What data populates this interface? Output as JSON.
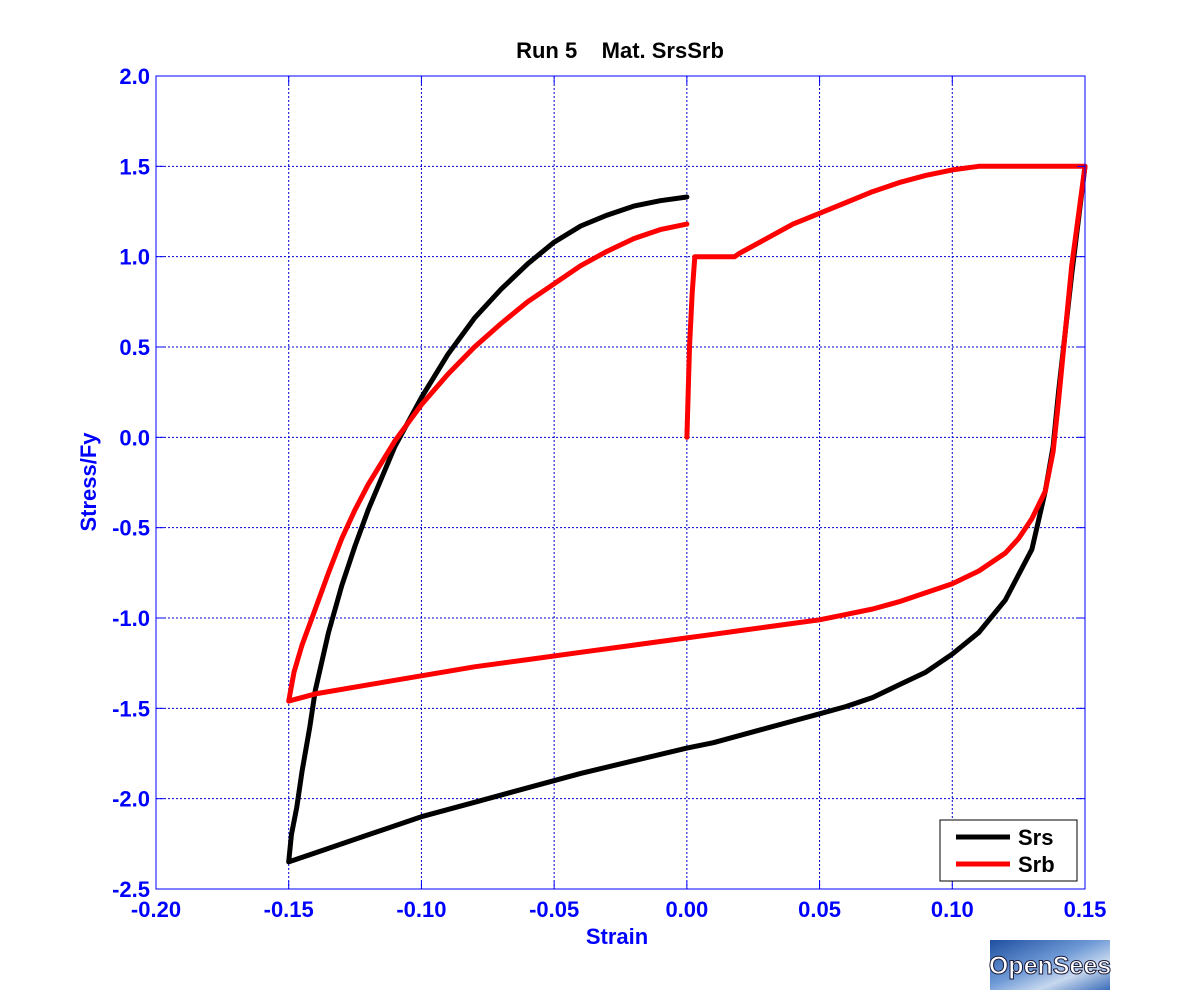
{
  "chart_data": {
    "type": "line",
    "title": "Run 5    Mat. SrsSrb",
    "xlabel": "Strain",
    "ylabel": "Stress/Fy",
    "xlim": [
      -0.2,
      0.15
    ],
    "ylim": [
      -2.5,
      2.0
    ],
    "xticks": [
      -0.2,
      -0.15,
      -0.1,
      -0.05,
      0.0,
      0.05,
      0.1,
      0.15
    ],
    "xtick_labels": [
      "-0.20",
      "-0.15",
      "-0.10",
      "-0.05",
      "0.00",
      "0.05",
      "0.10",
      "0.15"
    ],
    "yticks": [
      2.0,
      1.5,
      1.0,
      0.5,
      0.0,
      -0.5,
      -1.0,
      -1.5,
      -2.0,
      -2.5
    ],
    "ytick_labels": [
      "2.0",
      "1.5",
      "1.0",
      "0.5",
      "0.0",
      "-0.5",
      "-1.0",
      "-1.5",
      "-2.0",
      "-2.5"
    ],
    "grid": true,
    "legend": "bottom-right",
    "series": [
      {
        "name": "Srs",
        "color": "#000000",
        "x": [
          0.15,
          0.145,
          0.14,
          0.138,
          0.135,
          0.13,
          0.12,
          0.11,
          0.1,
          0.09,
          0.08,
          0.07,
          0.06,
          0.05,
          0.04,
          0.03,
          0.02,
          0.01,
          0.0,
          -0.02,
          -0.04,
          -0.06,
          -0.08,
          -0.1,
          -0.12,
          -0.14,
          -0.15,
          -0.149,
          -0.147,
          -0.145,
          -0.142,
          -0.14,
          -0.135,
          -0.13,
          -0.125,
          -0.12,
          -0.11,
          -0.1,
          -0.09,
          -0.08,
          -0.07,
          -0.06,
          -0.05,
          -0.04,
          -0.03,
          -0.02,
          -0.01,
          0.0
        ],
        "y": [
          1.5,
          0.9,
          0.25,
          -0.05,
          -0.3,
          -0.62,
          -0.9,
          -1.08,
          -1.2,
          -1.3,
          -1.37,
          -1.44,
          -1.49,
          -1.53,
          -1.57,
          -1.61,
          -1.65,
          -1.69,
          -1.72,
          -1.79,
          -1.86,
          -1.94,
          -2.02,
          -2.1,
          -2.2,
          -2.3,
          -2.35,
          -2.2,
          -2.05,
          -1.85,
          -1.6,
          -1.4,
          -1.08,
          -0.82,
          -0.6,
          -0.4,
          -0.05,
          0.22,
          0.46,
          0.66,
          0.82,
          0.96,
          1.08,
          1.17,
          1.23,
          1.28,
          1.31,
          1.33
        ]
      },
      {
        "name": "Srb",
        "color": "#ff0000",
        "x": [
          0.0,
          0.001,
          0.002,
          0.003,
          0.005,
          0.01,
          0.018,
          0.02,
          0.03,
          0.04,
          0.05,
          0.06,
          0.07,
          0.08,
          0.09,
          0.1,
          0.11,
          0.12,
          0.13,
          0.14,
          0.15,
          0.145,
          0.14,
          0.138,
          0.135,
          0.13,
          0.125,
          0.12,
          0.11,
          0.1,
          0.09,
          0.08,
          0.07,
          0.06,
          0.05,
          0.04,
          0.03,
          0.02,
          0.01,
          0.0,
          -0.02,
          -0.04,
          -0.06,
          -0.08,
          -0.1,
          -0.12,
          -0.14,
          -0.15,
          -0.148,
          -0.145,
          -0.14,
          -0.135,
          -0.13,
          -0.125,
          -0.12,
          -0.11,
          -0.1,
          -0.09,
          -0.08,
          -0.07,
          -0.06,
          -0.05,
          -0.04,
          -0.03,
          -0.02,
          -0.01,
          0.0
        ],
        "y": [
          0.0,
          0.5,
          0.8,
          1.0,
          1.0,
          1.0,
          1.0,
          1.02,
          1.1,
          1.18,
          1.24,
          1.3,
          1.36,
          1.41,
          1.45,
          1.48,
          1.5,
          1.5,
          1.5,
          1.5,
          1.5,
          0.95,
          0.2,
          -0.08,
          -0.3,
          -0.45,
          -0.56,
          -0.64,
          -0.74,
          -0.81,
          -0.86,
          -0.91,
          -0.95,
          -0.98,
          -1.01,
          -1.03,
          -1.05,
          -1.07,
          -1.09,
          -1.11,
          -1.15,
          -1.19,
          -1.23,
          -1.27,
          -1.32,
          -1.37,
          -1.42,
          -1.46,
          -1.3,
          -1.15,
          -0.95,
          -0.75,
          -0.56,
          -0.4,
          -0.26,
          -0.02,
          0.18,
          0.35,
          0.5,
          0.63,
          0.75,
          0.85,
          0.95,
          1.03,
          1.1,
          1.15,
          1.18
        ]
      }
    ]
  },
  "logo": {
    "text": "OpenSees"
  },
  "colors": {
    "axis": "#0000ff",
    "grid": "#0000cc",
    "title": "#000000"
  }
}
